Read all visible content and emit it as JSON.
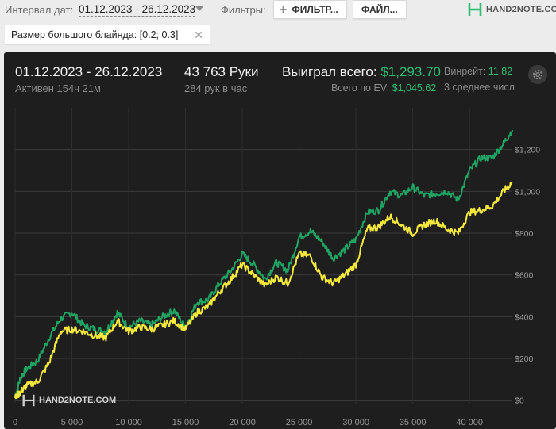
{
  "topbar": {
    "date_label": "Интервал дат:",
    "date_range": "01.12.2023 - 26.12.2023",
    "filters_label": "Фильтры:",
    "filters_button": "ФИЛЬТР...",
    "files_button": "ФАЙЛ...",
    "logo_text": "HAND2NOTE.COM"
  },
  "active_filter": {
    "label": "Размер большого блайнда: [0.2; 0.3]"
  },
  "summary": {
    "date_range": "01.12.2023 - 26.12.2023",
    "active_time": "Активен 154ч 21м",
    "hands": "43 763 Руки",
    "hands_per_hour": "284 рук в час",
    "won_label": "Выиграл всего:",
    "won_value": "$1,293.70",
    "ev_label": "Всего по EV:",
    "ev_value": "$1,045.62",
    "winrate_label": "Винрейт:",
    "winrate_value": "11.82",
    "avg_label": "3 среднее числ"
  },
  "watermark": "HAND2NOTE.COM",
  "chart_data": {
    "type": "line",
    "xlim": [
      0,
      43763
    ],
    "ylim": [
      -20,
      1400
    ],
    "x_ticks": [
      "0",
      "5 000",
      "10 000",
      "15 000",
      "20 000",
      "25 000",
      "30 000",
      "35 000",
      "40 000"
    ],
    "x_tick_values": [
      0,
      5000,
      10000,
      15000,
      20000,
      25000,
      30000,
      35000,
      40000
    ],
    "y_ticks": [
      "$0",
      "$200",
      "$400",
      "$600",
      "$800",
      "$1,000",
      "$1,200"
    ],
    "y_tick_values": [
      0,
      200,
      400,
      600,
      800,
      1000,
      1200
    ],
    "series": [
      {
        "color": "#1fa463",
        "x": [
          0,
          500,
          1000,
          2000,
          3000,
          4000,
          5000,
          6000,
          7000,
          8000,
          9000,
          10000,
          11000,
          12000,
          13000,
          14000,
          15000,
          16000,
          17000,
          18000,
          19000,
          20000,
          21000,
          22000,
          23000,
          24000,
          25000,
          26000,
          27000,
          28000,
          29000,
          30000,
          31000,
          32000,
          33000,
          34000,
          35000,
          36000,
          37000,
          38000,
          39000,
          40000,
          41000,
          42000,
          43000,
          43763
        ],
        "y": [
          20,
          110,
          150,
          190,
          300,
          390,
          420,
          360,
          340,
          330,
          420,
          350,
          380,
          360,
          400,
          430,
          350,
          470,
          480,
          560,
          620,
          700,
          650,
          580,
          660,
          620,
          780,
          810,
          760,
          680,
          720,
          770,
          900,
          910,
          1000,
          980,
          1020,
          980,
          990,
          1000,
          960,
          1100,
          1160,
          1160,
          1230,
          1294
        ]
      },
      {
        "color": "#f4e93c",
        "x": [
          0,
          500,
          1000,
          2000,
          3000,
          4000,
          5000,
          6000,
          7000,
          8000,
          9000,
          10000,
          11000,
          12000,
          13000,
          14000,
          15000,
          16000,
          17000,
          18000,
          19000,
          20000,
          21000,
          22000,
          23000,
          24000,
          25000,
          26000,
          27000,
          28000,
          29000,
          30000,
          31000,
          32000,
          33000,
          34000,
          35000,
          36000,
          37000,
          38000,
          39000,
          40000,
          41000,
          42000,
          43000,
          43763
        ],
        "y": [
          10,
          40,
          70,
          90,
          180,
          330,
          340,
          330,
          310,
          300,
          380,
          330,
          350,
          340,
          360,
          380,
          340,
          420,
          450,
          520,
          580,
          650,
          600,
          550,
          590,
          560,
          700,
          690,
          590,
          560,
          600,
          650,
          820,
          830,
          880,
          840,
          800,
          840,
          860,
          820,
          800,
          900,
          910,
          930,
          1000,
          1046
        ]
      }
    ]
  }
}
